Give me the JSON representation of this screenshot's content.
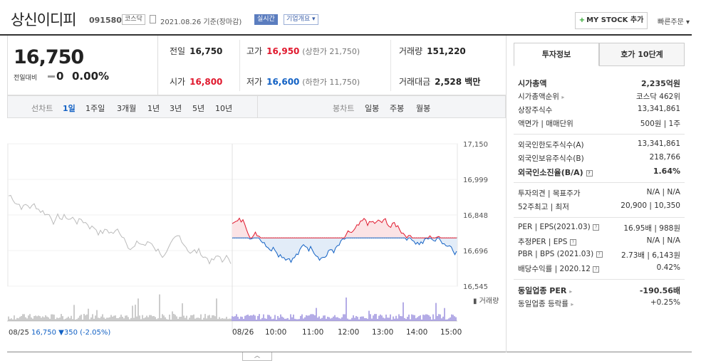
{
  "header": {
    "name": "상신이디피",
    "code": "091580",
    "market": "코스닥",
    "date": "2021.08.26 기준(장마감)",
    "realtime": "실시간",
    "company_info": "기업개요",
    "mystock": "MY STOCK 추가",
    "quick_order": "빠른주문"
  },
  "price": {
    "current": "16,750",
    "change_label": "전일대비",
    "change_value": "0",
    "change_pct": "0.00%"
  },
  "quote": {
    "prev_label": "전일",
    "prev": "16,750",
    "high_label": "고가",
    "high": "16,950",
    "upper_limit": "(상한가 21,750)",
    "volume_label": "거래량",
    "volume": "151,220",
    "open_label": "시가",
    "open": "16,800",
    "low_label": "저가",
    "low": "16,600",
    "lower_limit": "(하한가 11,750)",
    "amount_label": "거래대금",
    "amount": "2,528 백만"
  },
  "periods": {
    "line_label": "선차트",
    "items": [
      "1일",
      "1주일",
      "3개월",
      "1년",
      "3년",
      "5년",
      "10년"
    ],
    "candle_label": "봉차트",
    "candles": [
      "일봉",
      "주봉",
      "월봉"
    ]
  },
  "chart_data": {
    "type": "line",
    "yticks": [
      "17,150",
      "16,999",
      "16,848",
      "16,696",
      "16,545"
    ],
    "ylim": [
      16545,
      17150
    ],
    "reference": 16750,
    "xticks": [
      "08/26",
      "10:00",
      "11:00",
      "12:00",
      "13:00",
      "14:00",
      "15:00"
    ],
    "volume_label": "거래량",
    "prev_day_label": "08/25",
    "prev_day_close": "16,750",
    "prev_day_change": "▼350",
    "prev_day_pct": "(-2.05%)",
    "colors": {
      "up": "#e0182d",
      "down": "#1261c4",
      "prev": "#bbbbbb"
    }
  },
  "sidepanel": {
    "tab_invest": "투자정보",
    "tab_orderbook": "호가 10단계",
    "market_cap_label": "시가총액",
    "market_cap": "2,235억원",
    "rank_label": "시가총액순위",
    "rank": "코스닥 462위",
    "shares_label": "상장주식수",
    "shares": "13,341,861",
    "face_label": "액면가 | 매매단위",
    "face": "500원 | 1주",
    "foreign_limit_label": "외국인한도주식수(A)",
    "foreign_limit": "13,341,861",
    "foreign_hold_label": "외국인보유주식수(B)",
    "foreign_hold": "218,766",
    "foreign_ratio_label": "외국인소진율(B/A)",
    "foreign_ratio": "1.64%",
    "opinion_label": "투자의견 | 목표주가",
    "opinion": "N/A | N/A",
    "week52_label": "52주최고 | 최저",
    "week52": "20,900 | 10,350",
    "per_label": "PER | EPS(2021.03)",
    "per": "16.95배 | 988원",
    "est_per_label": "추정PER | EPS",
    "est_per": "N/A | N/A",
    "pbr_label": "PBR | BPS (2021.03)",
    "pbr": "2.73배 | 6,143원",
    "div_label": "배당수익률 | 2020.12",
    "div": "0.42%",
    "sector_per_label": "동일업종 PER",
    "sector_per": "-190.56배",
    "sector_rate_label": "동일업종 등락률",
    "sector_rate": "+0.25%"
  }
}
